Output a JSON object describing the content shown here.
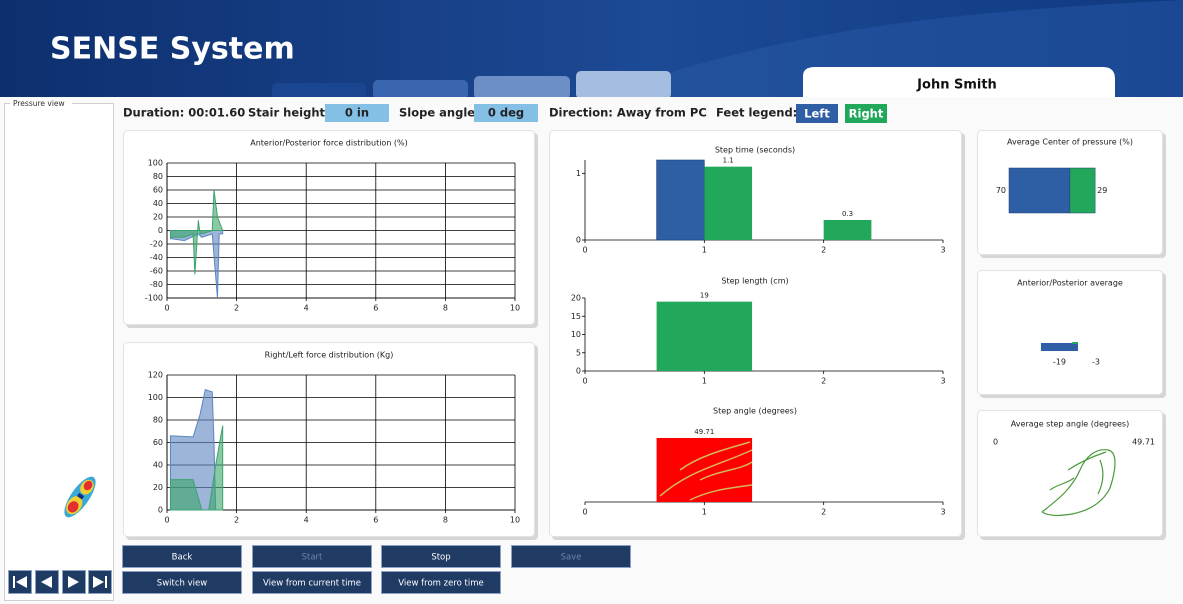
{
  "header": {
    "title": "SENSE System",
    "user": "John Smith"
  },
  "pressure_view": {
    "label": "Pressure view"
  },
  "info": {
    "duration": "Duration: 00:01.60",
    "stair_height_label": "Stair height:",
    "stair_height": "0 in",
    "slope_angle_label": "Slope angle:",
    "slope_angle": "0 deg",
    "direction": "Direction: Away from PC",
    "feet_legend_label": "Feet legend:",
    "left": "Left",
    "right": "Right"
  },
  "buttons": [
    "Back",
    "Start",
    "Stop",
    "Save",
    "Switch view",
    "View from current time",
    "View from zero time"
  ],
  "chart_data": [
    {
      "type": "area",
      "title": "Anterior/Posterior force distribution (%)",
      "xlim": [
        0,
        10
      ],
      "xticks": [
        0,
        2,
        4,
        6,
        8,
        10
      ],
      "ylim": [
        -100,
        100
      ],
      "yticks": [
        -100,
        -80,
        -60,
        -40,
        -20,
        0,
        20,
        40,
        60,
        80,
        100
      ],
      "grid": true,
      "series": [
        {
          "color": "#5b84c0",
          "x": [
            0.1,
            0.5,
            0.9,
            1.0,
            1.3,
            1.45,
            1.5,
            1.6
          ],
          "values": [
            -12,
            -15,
            -5,
            -10,
            -5,
            -100,
            -5,
            -5
          ]
        },
        {
          "color": "#3aa56b",
          "x": [
            0.1,
            0.5,
            0.75,
            0.8,
            0.9,
            0.95,
            1.0,
            1.3,
            1.35,
            1.45,
            1.6
          ],
          "values": [
            -10,
            -10,
            -5,
            -65,
            15,
            -5,
            -5,
            0,
            60,
            20,
            0
          ]
        }
      ]
    },
    {
      "type": "area",
      "title": "Right/Left force distribution (Kg)",
      "xlim": [
        0,
        10
      ],
      "xticks": [
        0,
        2,
        4,
        6,
        8,
        10
      ],
      "ylim": [
        0,
        120
      ],
      "yticks": [
        0,
        20,
        40,
        60,
        80,
        100,
        120
      ],
      "grid": true,
      "series": [
        {
          "color": "#5b84c0",
          "x": [
            0.1,
            0.75,
            0.95,
            1.1,
            1.3,
            1.35,
            1.4
          ],
          "values": [
            66,
            65,
            85,
            107,
            105,
            60,
            0
          ]
        },
        {
          "color": "#3aa56b",
          "x": [
            0.1,
            0.75,
            1.0,
            1.2,
            1.4,
            1.6
          ],
          "values": [
            27,
            27,
            0,
            0,
            40,
            75
          ]
        }
      ]
    },
    {
      "type": "bar",
      "title": "Step time (seconds)",
      "x": [
        1,
        2
      ],
      "xlim": [
        0,
        3
      ],
      "xticks": [
        0,
        1,
        2,
        3
      ],
      "ylim": [
        0,
        1.2
      ],
      "yticks": [
        0,
        1
      ],
      "series": [
        {
          "color": "#2e5fa5",
          "values": [
            1.2,
            null
          ],
          "data_labels": false
        },
        {
          "color": "#22a85a",
          "values": [
            1.1,
            0.3
          ],
          "data_labels": true
        }
      ]
    },
    {
      "type": "bar",
      "title": "Step length (cm)",
      "x": [
        1
      ],
      "xlim": [
        0,
        3
      ],
      "xticks": [
        0,
        1,
        2,
        3
      ],
      "ylim": [
        0,
        20
      ],
      "yticks": [
        0,
        5,
        10,
        15,
        20
      ],
      "series": [
        {
          "color": "#22a85a",
          "values": [
            19
          ],
          "data_labels": true
        }
      ]
    },
    {
      "type": "bar",
      "title": "Step angle (degrees)",
      "x": [
        1
      ],
      "xlim": [
        0,
        3
      ],
      "xticks": [
        0,
        1,
        2,
        3
      ],
      "ylim": [
        0,
        50
      ],
      "yticks": [],
      "series": [
        {
          "color": "#ff0000",
          "values": [
            49.71
          ],
          "data_labels": true
        }
      ]
    },
    {
      "type": "stacked-hbar",
      "title": "Average Center of pressure (%)",
      "xlim": [
        0,
        100
      ],
      "series": [
        {
          "color": "#2e5fa5",
          "values": [
            70
          ]
        },
        {
          "color": "#22a85a",
          "values": [
            29
          ]
        }
      ]
    },
    {
      "type": "hbar",
      "title": "Anterior/Posterior average",
      "xlim": [
        -40,
        20
      ],
      "series": [
        {
          "color": "#2e5fa5",
          "values": [
            -19
          ]
        },
        {
          "color": "#22a85a",
          "values": [
            -3
          ]
        }
      ]
    },
    {
      "type": "angle",
      "title": "Average step angle (degrees)",
      "xticks": [
        0
      ],
      "values": [
        49.71
      ]
    }
  ]
}
